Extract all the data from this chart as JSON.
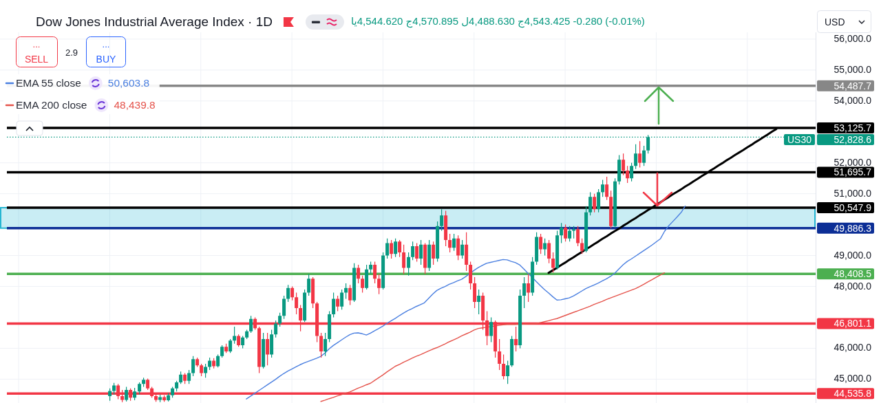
{
  "chart_data": {
    "type": "candlestick",
    "title": "Dow Jones Industrial Average Index · 1D",
    "categories": [
      null,
      null,
      null,
      null,
      null,
      null,
      null,
      null,
      null,
      null,
      null,
      null,
      null,
      null,
      null,
      null,
      null,
      null,
      null,
      null,
      null,
      null,
      null,
      null,
      null,
      null,
      null,
      null,
      null,
      null,
      null,
      null,
      null,
      null,
      null,
      null,
      null,
      null,
      null,
      null,
      null,
      null,
      null,
      null,
      null,
      null,
      null,
      null,
      null,
      null,
      null,
      null,
      null,
      null,
      null,
      null,
      null,
      null,
      null,
      null,
      null,
      null,
      null,
      null,
      null,
      null,
      null,
      null,
      null,
      null,
      null,
      null,
      null,
      null,
      null,
      null,
      null,
      null,
      null,
      null,
      null,
      null,
      null,
      null,
      null,
      null,
      null,
      null,
      null,
      null,
      null,
      null,
      null,
      null,
      null,
      null,
      null,
      null,
      null,
      null,
      null,
      null,
      null,
      null,
      null,
      null,
      null,
      null,
      null,
      null,
      null,
      null,
      null,
      null,
      null,
      null,
      null,
      null,
      null,
      null,
      null,
      null,
      null,
      null,
      null,
      null,
      null,
      null,
      null,
      null,
      null,
      null,
      null,
      null,
      null,
      null,
      null,
      null,
      null,
      null,
      null,
      null,
      null,
      null,
      null,
      null,
      null,
      null,
      null,
      null,
      null,
      null,
      null,
      null,
      null,
      null,
      null,
      null,
      null,
      null,
      null,
      null,
      null,
      null,
      null,
      null,
      null,
      null,
      null,
      null,
      null,
      null,
      null,
      null,
      null,
      null,
      null,
      null,
      null,
      null,
      null,
      null,
      null,
      null,
      null,
      null,
      null,
      null,
      null,
      null,
      null,
      null,
      null,
      null,
      null,
      null,
      null
    ],
    "ohlc": [
      null,
      null,
      null,
      null,
      null,
      null,
      null,
      null,
      null,
      null,
      null,
      null,
      null,
      null,
      null,
      null,
      null,
      null,
      null,
      null,
      null,
      null,
      null,
      null,
      null,
      null,
      [
        44450,
        44700,
        44300,
        44620
      ],
      [
        44620,
        44880,
        44500,
        44800
      ],
      [
        44800,
        44850,
        44350,
        44450
      ],
      [
        44450,
        44650,
        44260,
        44330
      ],
      [
        44330,
        44750,
        44280,
        44650
      ],
      [
        44650,
        44700,
        44300,
        44400
      ],
      [
        44400,
        44720,
        44320,
        44600
      ],
      [
        44600,
        44900,
        44500,
        44850
      ],
      [
        44850,
        45050,
        44750,
        44980
      ],
      [
        44980,
        45020,
        44650,
        44700
      ],
      [
        44700,
        44750,
        44400,
        44450
      ],
      [
        44450,
        44550,
        44270,
        44330
      ],
      [
        44330,
        44500,
        44260,
        44420
      ],
      [
        44420,
        44480,
        44270,
        44320
      ],
      [
        44320,
        44550,
        44280,
        44480
      ],
      [
        44480,
        44750,
        44400,
        44700
      ],
      [
        44700,
        44950,
        44600,
        44900
      ],
      [
        44900,
        45250,
        44850,
        45150
      ],
      [
        45150,
        45200,
        44850,
        44950
      ],
      [
        44950,
        45300,
        44850,
        45200
      ],
      [
        45200,
        45750,
        45100,
        45650
      ],
      [
        45650,
        45700,
        45400,
        45450
      ],
      [
        45450,
        45500,
        45100,
        45200
      ],
      [
        45200,
        45500,
        45050,
        45400
      ],
      [
        45400,
        45700,
        45300,
        45600
      ],
      [
        45600,
        45680,
        45350,
        45420
      ],
      [
        45420,
        45800,
        45380,
        45750
      ],
      [
        45750,
        46100,
        45700,
        46050
      ],
      [
        46050,
        46150,
        45850,
        45900
      ],
      [
        45900,
        46300,
        45850,
        46250
      ],
      [
        46250,
        46700,
        46150,
        46400
      ],
      [
        46400,
        46450,
        46050,
        46100
      ],
      [
        46100,
        46400,
        46000,
        46350
      ],
      [
        46350,
        46600,
        46300,
        46550
      ],
      [
        46550,
        47050,
        46500,
        46950
      ],
      [
        46950,
        47000,
        46600,
        46650
      ],
      [
        46650,
        46700,
        45200,
        45400
      ],
      [
        45400,
        46500,
        45350,
        46300
      ],
      [
        46300,
        46500,
        45450,
        45800
      ],
      [
        45800,
        46600,
        45700,
        46450
      ],
      [
        46450,
        46900,
        46350,
        46800
      ],
      [
        46800,
        47150,
        46700,
        47050
      ],
      [
        47050,
        47700,
        46950,
        47600
      ],
      [
        47600,
        48050,
        47500,
        47950
      ],
      [
        47950,
        48000,
        47550,
        47650
      ],
      [
        47650,
        47800,
        47100,
        47300
      ],
      [
        47300,
        47400,
        46550,
        46900
      ],
      [
        46900,
        47900,
        46850,
        47800
      ],
      [
        47800,
        48400,
        47700,
        48250
      ],
      [
        48250,
        48300,
        47300,
        47450
      ],
      [
        47450,
        47500,
        46200,
        46400
      ],
      [
        46400,
        46500,
        45700,
        45900
      ],
      [
        45900,
        46500,
        45750,
        46300
      ],
      [
        46300,
        47200,
        46200,
        47100
      ],
      [
        47100,
        47800,
        47000,
        47600
      ],
      [
        47600,
        47700,
        47200,
        47350
      ],
      [
        47350,
        47900,
        47250,
        47800
      ],
      [
        47800,
        48100,
        47600,
        47950
      ],
      [
        47950,
        48050,
        47400,
        47550
      ],
      [
        47550,
        48750,
        47500,
        48600
      ],
      [
        48600,
        48700,
        48100,
        48250
      ],
      [
        48250,
        48350,
        47800,
        47950
      ],
      [
        47950,
        48700,
        47900,
        48550
      ],
      [
        48550,
        48800,
        48400,
        48700
      ],
      [
        48700,
        48800,
        48100,
        48250
      ],
      [
        48250,
        48400,
        47750,
        47950
      ],
      [
        47950,
        49100,
        47900,
        49000
      ],
      [
        49000,
        49550,
        48900,
        49400
      ],
      [
        49400,
        49500,
        48900,
        49050
      ],
      [
        49050,
        49550,
        48950,
        49450
      ],
      [
        49450,
        49500,
        48950,
        49100
      ],
      [
        49100,
        49350,
        48400,
        48600
      ],
      [
        48600,
        49100,
        48350,
        48950
      ],
      [
        48950,
        49450,
        48850,
        49300
      ],
      [
        49300,
        49400,
        48800,
        48900
      ],
      [
        48900,
        49500,
        48700,
        49350
      ],
      [
        49350,
        49400,
        48400,
        48600
      ],
      [
        48600,
        49500,
        48500,
        49350
      ],
      [
        49350,
        49450,
        48700,
        48900
      ],
      [
        48900,
        50100,
        48800,
        49950
      ],
      [
        49950,
        50500,
        49800,
        50300
      ],
      [
        50300,
        50450,
        49300,
        49500
      ],
      [
        49500,
        49700,
        49100,
        49250
      ],
      [
        49250,
        49700,
        49150,
        49550
      ],
      [
        49550,
        49650,
        48850,
        49000
      ],
      [
        49000,
        49500,
        48900,
        49350
      ],
      [
        49350,
        49750,
        48500,
        48700
      ],
      [
        48700,
        48800,
        47900,
        48100
      ],
      [
        48100,
        48300,
        47300,
        47500
      ],
      [
        47500,
        47900,
        47100,
        47700
      ],
      [
        47700,
        47800,
        46600,
        46900
      ],
      [
        46900,
        47200,
        46100,
        46400
      ],
      [
        46400,
        47000,
        46200,
        46850
      ],
      [
        46850,
        46900,
        45700,
        45900
      ],
      [
        45900,
        46300,
        45300,
        45500
      ],
      [
        45500,
        45800,
        45000,
        45100
      ],
      [
        45100,
        45600,
        44850,
        45450
      ],
      [
        45450,
        46400,
        45400,
        46300
      ],
      [
        46300,
        46700,
        45900,
        46100
      ],
      [
        46100,
        47900,
        46000,
        47700
      ],
      [
        47700,
        48300,
        47300,
        48100
      ],
      [
        48100,
        48400,
        47500,
        47800
      ],
      [
        47800,
        48950,
        47700,
        48800
      ],
      [
        48800,
        49750,
        48700,
        49600
      ],
      [
        49600,
        49700,
        49050,
        49200
      ],
      [
        49200,
        49550,
        49000,
        49400
      ],
      [
        49400,
        49500,
        48750,
        48900
      ],
      [
        48900,
        49100,
        48450,
        48600
      ],
      [
        48600,
        49800,
        48550,
        49650
      ],
      [
        49650,
        50050,
        49400,
        49900
      ],
      [
        49900,
        50000,
        49450,
        49550
      ],
      [
        49550,
        49950,
        49450,
        49800
      ],
      [
        49800,
        49950,
        49550,
        49850
      ],
      [
        49850,
        49950,
        49300,
        49400
      ],
      [
        49400,
        49550,
        49050,
        49150
      ],
      [
        49150,
        50600,
        49100,
        50400
      ],
      [
        50400,
        51050,
        50300,
        50900
      ],
      [
        50900,
        51000,
        50400,
        50500
      ],
      [
        50500,
        51150,
        50400,
        51050
      ],
      [
        51050,
        51450,
        50900,
        51300
      ],
      [
        51300,
        51550,
        50800,
        50900
      ],
      [
        50900,
        51100,
        49880,
        49950
      ],
      [
        49950,
        51500,
        49900,
        51400
      ],
      [
        51400,
        52250,
        51300,
        52100
      ],
      [
        52100,
        52300,
        51600,
        51750
      ],
      [
        51750,
        51900,
        51350,
        51500
      ],
      [
        51500,
        52000,
        51400,
        51900
      ],
      [
        51900,
        52600,
        51800,
        52300
      ],
      [
        52300,
        52700,
        51850,
        52000
      ],
      [
        52000,
        52550,
        51900,
        52400
      ],
      [
        52400,
        52900,
        52300,
        52828.6
      ],
      null,
      null,
      null,
      null,
      null,
      null,
      null,
      null,
      null,
      null,
      null,
      null,
      null,
      null,
      null,
      null,
      null,
      null,
      null,
      null,
      null,
      null,
      null,
      null,
      null,
      null,
      null,
      null,
      null,
      null,
      null,
      null,
      null,
      null,
      null,
      null,
      null,
      null,
      null,
      null
    ],
    "colors": [
      null,
      null,
      null,
      null,
      null,
      null,
      null,
      null,
      null,
      null,
      null,
      null,
      null,
      null,
      null,
      null,
      null,
      null,
      null,
      null,
      null,
      null,
      null,
      null,
      null,
      null,
      "#089981",
      "#089981",
      "#f23645",
      "#f23645",
      "#089981",
      "#f23645",
      "#089981",
      "#089981",
      "#089981",
      "#f23645",
      "#f23645",
      "#f23645",
      "#089981",
      "#f23645",
      "#089981",
      "#089981",
      "#089981",
      "#089981",
      "#f23645",
      "#089981",
      "#089981",
      "#f23645",
      "#f23645",
      "#089981",
      "#089981",
      "#f23645",
      "#089981",
      "#089981",
      "#f23645",
      "#089981",
      "#089981",
      "#f23645",
      "#089981",
      "#089981",
      "#089981",
      "#f23645",
      "#f23645",
      "#089981",
      "#f23645",
      "#089981",
      "#089981",
      "#089981",
      "#089981",
      "#089981",
      "#f23645",
      "#f23645",
      "#f23645",
      "#089981",
      "#089981",
      "#f23645",
      "#f23645",
      "#f23645",
      "#089981",
      "#089981",
      "#089981",
      "#f23645",
      "#089981",
      "#089981",
      "#f23645",
      "#089981",
      "#f23645",
      "#f23645",
      "#089981",
      "#089981",
      "#f23645",
      "#f23645",
      "#089981",
      "#089981",
      "#f23645",
      "#089981",
      "#f23645",
      "#f23645",
      "#089981",
      "#089981",
      "#f23645",
      "#089981",
      "#f23645",
      "#089981",
      "#f23645",
      "#089981",
      "#089981",
      "#f23645",
      "#f23645",
      "#089981",
      "#f23645",
      "#089981",
      "#f23645",
      "#f23645",
      "#f23645",
      "#089981",
      "#f23645",
      "#f23645",
      "#089981",
      "#f23645",
      "#f23645",
      "#f23645",
      "#089981",
      "#089981",
      "#f23645",
      "#089981",
      "#089981",
      "#f23645",
      "#089981",
      "#089981",
      "#f23645",
      "#089981",
      "#f23645",
      "#f23645",
      "#089981",
      "#089981",
      "#f23645",
      "#089981",
      "#089981",
      "#f23645",
      "#f23645",
      "#089981",
      "#089981",
      "#f23645",
      "#089981",
      "#089981",
      "#f23645",
      "#f23645",
      "#089981",
      "#089981",
      "#f23645",
      "#f23645",
      "#089981",
      "#089981",
      "#f23645",
      "#089981",
      "#089981",
      null,
      null,
      null,
      null,
      null,
      null,
      null,
      null,
      null,
      null,
      null,
      null,
      null,
      null,
      null,
      null,
      null,
      null,
      null,
      null,
      null,
      null,
      null,
      null,
      null,
      null,
      null,
      null,
      null,
      null,
      null,
      null,
      null,
      null,
      null,
      null,
      null,
      null,
      null,
      null
    ],
    "series": [
      {
        "name": "EMA 55 close",
        "type": "line",
        "color": "#4a7fe0",
        "values": [
          null,
          null,
          null,
          null,
          null,
          null,
          null,
          null,
          null,
          null,
          null,
          null,
          null,
          null,
          null,
          null,
          null,
          null,
          null,
          null,
          null,
          null,
          null,
          null,
          null,
          null,
          null,
          null,
          null,
          null,
          null,
          null,
          null,
          null,
          null,
          null,
          null,
          null,
          null,
          null,
          null,
          null,
          null,
          null,
          null,
          null,
          null,
          null,
          null,
          null,
          null,
          null,
          null,
          null,
          null,
          null,
          null,
          null,
          null,
          44360,
          44450,
          44540,
          44630,
          44720,
          44810,
          44900,
          44990,
          45090,
          45180,
          45260,
          45330,
          45400,
          45470,
          45530,
          45580,
          45630,
          45680,
          45740,
          45850,
          45980,
          46090,
          46180,
          46270,
          46360,
          46440,
          46490,
          46500,
          46470,
          46430,
          46490,
          46570,
          46640,
          46720,
          46810,
          46890,
          46970,
          47060,
          47140,
          47220,
          47280,
          47350,
          47410,
          47470,
          47610,
          47750,
          47870,
          47940,
          48000,
          48070,
          48120,
          48180,
          48230,
          48320,
          48420,
          48520,
          48610,
          48680,
          48750,
          48780,
          48810,
          48840,
          48870,
          48860,
          48810,
          48770,
          48700,
          48570,
          48430,
          48300,
          48160,
          48030,
          47900,
          47790,
          47670,
          47560,
          47570,
          47600,
          47630,
          47690,
          47770,
          47850,
          47930,
          47990,
          48050,
          48110,
          48180,
          48250,
          48330,
          48430,
          48570,
          48700,
          48810,
          48890,
          48980,
          49070,
          49160,
          49250,
          49340,
          49440,
          49540,
          49780,
          49960,
          50100,
          50240,
          50390,
          50600,
          null,
          null,
          null,
          null,
          null,
          null,
          null,
          null,
          null,
          null,
          null,
          null,
          null,
          null,
          null,
          null,
          null,
          null,
          null,
          null,
          null,
          null,
          null,
          null,
          null,
          null,
          null,
          null,
          null,
          null,
          null
        ]
      },
      {
        "name": "EMA 200 close",
        "type": "line",
        "color": "#e5534b",
        "values": [
          null,
          null,
          null,
          null,
          null,
          null,
          null,
          null,
          null,
          null,
          null,
          null,
          null,
          null,
          null,
          null,
          null,
          null,
          null,
          null,
          null,
          null,
          null,
          null,
          null,
          null,
          null,
          null,
          null,
          null,
          null,
          null,
          null,
          null,
          null,
          null,
          null,
          null,
          null,
          null,
          null,
          null,
          null,
          null,
          null,
          null,
          null,
          null,
          null,
          null,
          null,
          null,
          null,
          null,
          null,
          null,
          null,
          null,
          null,
          null,
          null,
          null,
          null,
          null,
          null,
          null,
          null,
          null,
          null,
          null,
          null,
          null,
          null,
          null,
          null,
          null,
          null,
          44280,
          44320,
          44370,
          44410,
          44460,
          44500,
          44550,
          44590,
          44650,
          44710,
          44760,
          44820,
          44870,
          44960,
          45050,
          45140,
          45240,
          45330,
          45420,
          45480,
          45550,
          45610,
          45680,
          45740,
          45790,
          45850,
          45910,
          45970,
          46020,
          46080,
          46140,
          46210,
          46270,
          46330,
          46400,
          46460,
          46520,
          46590,
          46640,
          46660,
          46680,
          46700,
          46720,
          46740,
          46760,
          46770,
          46770,
          46770,
          46780,
          46780,
          46790,
          46790,
          46800,
          46830,
          46860,
          46890,
          46930,
          46960,
          47010,
          47060,
          47110,
          47160,
          47210,
          47260,
          47310,
          47360,
          47420,
          47470,
          47520,
          47580,
          47630,
          47680,
          47730,
          47780,
          47830,
          47880,
          47930,
          48000,
          48070,
          48150,
          48220,
          48300,
          48370,
          48440,
          null,
          null,
          null,
          null,
          null,
          null,
          null,
          null,
          null,
          null,
          null,
          null,
          null,
          null,
          null,
          null,
          null,
          null,
          null,
          null,
          null,
          null,
          null,
          null,
          null,
          null,
          null,
          null,
          null,
          null,
          null,
          null,
          null,
          null,
          null,
          null
        ]
      },
      {
        "type": "line",
        "color": "#000000",
        "values": [
          null,
          null,
          null,
          null,
          null,
          null,
          null,
          null,
          null,
          null,
          null,
          null,
          null,
          null,
          null,
          null,
          null,
          null,
          null,
          null,
          null,
          null,
          null,
          null,
          null,
          null,
          null,
          null,
          null,
          null,
          null,
          null,
          null,
          null,
          null,
          null,
          null,
          null,
          null,
          null,
          null,
          null,
          null,
          null,
          null,
          null,
          null,
          null,
          null,
          null,
          null,
          null,
          null,
          null,
          null,
          null,
          null,
          null,
          null,
          null,
          null,
          null,
          null,
          null,
          null,
          null,
          null,
          null,
          null,
          null,
          null,
          null,
          null,
          null,
          null,
          null,
          null,
          null,
          null,
          null,
          null,
          null,
          null,
          null,
          null,
          null,
          null,
          null,
          null,
          null,
          null,
          null,
          null,
          null,
          null,
          null,
          null,
          null,
          null,
          null,
          null,
          null,
          null,
          null,
          null,
          null,
          null,
          null,
          null,
          null,
          null,
          null,
          null,
          null,
          null,
          null,
          null,
          null,
          null,
          null,
          null,
          null,
          null,
          null,
          null,
          null,
          null,
          null,
          null,
          null,
          null,
          null,
          48440,
          48520,
          48600,
          48690,
          48770,
          48860,
          48940,
          49030,
          49110,
          49200,
          49280,
          49370,
          49450,
          49540,
          49620,
          49710,
          49790,
          49870,
          49960,
          50040,
          50130,
          50210,
          50300,
          50380,
          50470,
          50550,
          50640,
          50720,
          50810,
          50890,
          50980,
          51060,
          51140,
          51230,
          51310,
          51400,
          51480,
          51570,
          51650,
          51740,
          51820,
          51910,
          51990,
          52080,
          52160,
          52250,
          52330,
          52410,
          52500,
          52580,
          52670,
          52750,
          52840,
          52920,
          53010,
          53090,
          null,
          null,
          null,
          null,
          null,
          null,
          null,
          null,
          null
        ]
      }
    ],
    "ylim": [
      44230,
      56220
    ],
    "yticks": [
      {
        "value": 45000,
        "label": "45,000.0"
      },
      {
        "value": 46000,
        "label": "46,000.0"
      },
      {
        "value": 48000,
        "label": "48,000.0"
      },
      {
        "value": 49000,
        "label": "49,000.0"
      },
      {
        "value": 51000,
        "label": "51,000.0"
      },
      {
        "value": 52000,
        "label": "52,000.0"
      },
      {
        "value": 54000,
        "label": "54,000.0"
      },
      {
        "value": 55000,
        "label": "55,000.0"
      },
      {
        "value": 56000,
        "label": "56,000.0"
      }
    ],
    "ref_lines": [
      {
        "axis": "y",
        "value": 54487.7,
        "label": "54,487.7",
        "color": "#878787"
      },
      {
        "axis": "y",
        "value": 53125.7,
        "label": "53,125.7",
        "color": "#000000"
      },
      {
        "axis": "y",
        "value": 52828.6,
        "label": "52,828.6",
        "color": "#089981",
        "line_style": "dotted"
      },
      {
        "axis": "y",
        "value": 51695.7,
        "label": "51,695.7",
        "color": "#000000"
      },
      {
        "axis": "y",
        "value": 50547.9,
        "label": "50,547.9",
        "color": "#000000"
      },
      {
        "axis": "y",
        "value": 49886.3,
        "label": "49,886.3",
        "color": "#0c2e96"
      },
      {
        "axis": "y",
        "value": 48408.5,
        "label": "48,408.5",
        "color": "#4caf50"
      },
      {
        "axis": "y",
        "value": 46801.1,
        "label": "46,801.1",
        "color": "#f23645"
      },
      {
        "axis": "y",
        "value": 44535.8,
        "label": "44,535.8",
        "color": "#f23645"
      }
    ],
    "bands": [
      {
        "axis": "y",
        "from": 49886.3,
        "to": 50547.9,
        "color": "#26b6d2"
      }
    ],
    "annotations": [
      "يا4,544.620 ج4,570.895 ل4,488.630 ج4,543.425 -0.280 (-0.01%)",
      "...",
      "SELL",
      "2.9",
      "...",
      "BUY",
      "USD",
      "50,603.8",
      "48,439.8",
      {
        "text": "US30",
        "y": 52828.6
      }
    ],
    "legend": "top left",
    "grid": true
  }
}
